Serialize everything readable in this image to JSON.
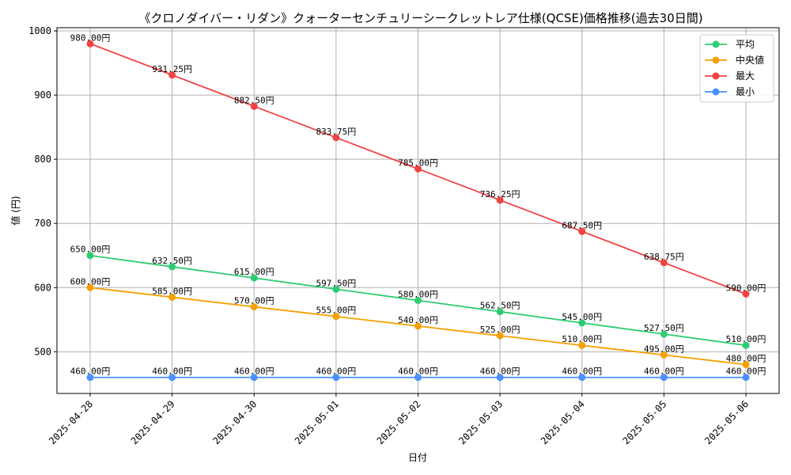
{
  "chart_data": {
    "type": "line",
    "title": "《クロノダイバー・リダン》クォーターセンチュリーシークレットレア仕様(QCSE)価格推移(過去30日間)",
    "xlabel": "日付",
    "ylabel": "値 (円)",
    "categories": [
      "2025-04-28",
      "2025-04-29",
      "2025-04-30",
      "2025-05-01",
      "2025-05-02",
      "2025-05-03",
      "2025-05-04",
      "2025-05-05",
      "2025-05-06"
    ],
    "yticks": [
      500,
      600,
      700,
      800,
      900,
      1000
    ],
    "ylim": [
      435,
      1005
    ],
    "grid": true,
    "legend_position": "top-right",
    "value_suffix": "円",
    "series": [
      {
        "name": "平均",
        "color": "#2ecc71",
        "values": [
          650,
          632.5,
          615,
          597.5,
          580,
          562.5,
          545,
          527.5,
          510
        ]
      },
      {
        "name": "中央値",
        "color": "#f5a000",
        "values": [
          600,
          585,
          570,
          555,
          540,
          525,
          510,
          495,
          480
        ]
      },
      {
        "name": "最大",
        "color": "#ef4444",
        "values": [
          980,
          931.25,
          882.5,
          833.75,
          785,
          736.25,
          687.5,
          638.75,
          590
        ]
      },
      {
        "name": "最小",
        "color": "#4a90ff",
        "values": [
          460,
          460,
          460,
          460,
          460,
          460,
          460,
          460,
          460
        ]
      }
    ]
  }
}
